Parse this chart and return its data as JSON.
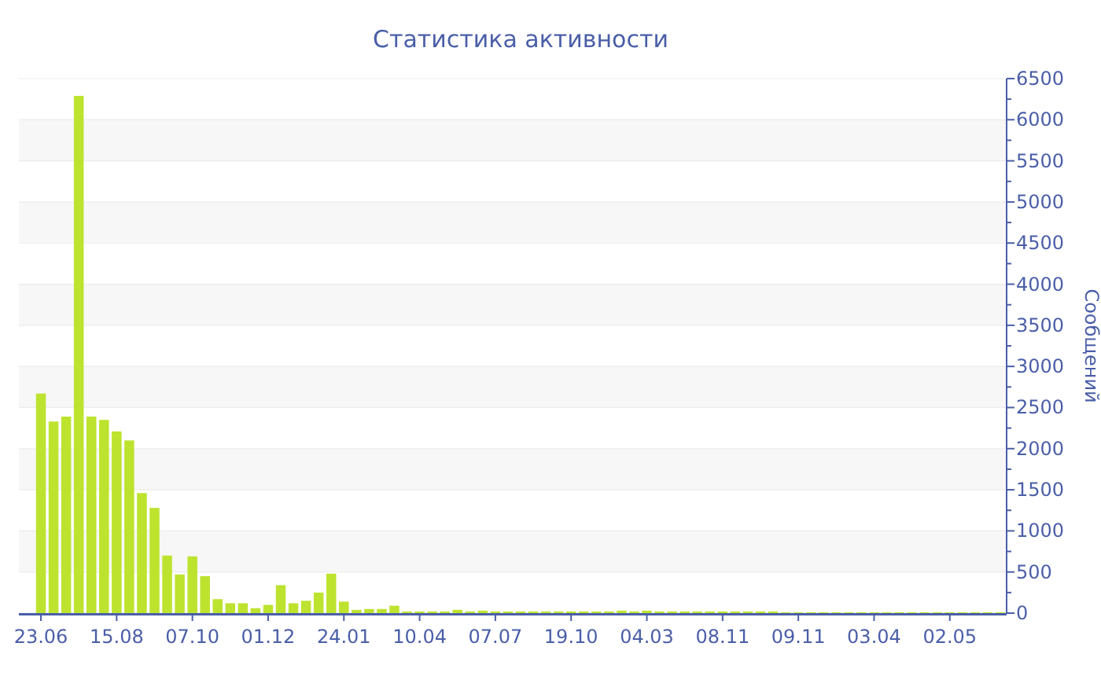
{
  "chart_data": {
    "type": "bar",
    "title": "Статистика активности",
    "ylabel": "Сообщений",
    "color": "#bde32f",
    "categories": [
      "23.06",
      null,
      null,
      null,
      null,
      null,
      "15.08",
      null,
      null,
      null,
      null,
      null,
      "07.10",
      null,
      null,
      null,
      null,
      null,
      "01.12",
      null,
      null,
      null,
      null,
      null,
      "24.01",
      null,
      null,
      null,
      null,
      null,
      "10.04",
      null,
      null,
      null,
      null,
      null,
      "07.07",
      null,
      null,
      null,
      null,
      null,
      "19.10",
      null,
      null,
      null,
      null,
      null,
      "04.03",
      null,
      null,
      null,
      null,
      null,
      "08.11",
      null,
      null,
      null,
      null,
      null,
      "09.11",
      null,
      null,
      null,
      null,
      null,
      "03.04",
      null,
      null,
      null,
      null,
      null,
      "02.05",
      null,
      null,
      null,
      null
    ],
    "values": [
      2670,
      2330,
      2390,
      6290,
      2390,
      2350,
      2210,
      2100,
      1460,
      1280,
      700,
      470,
      690,
      450,
      170,
      120,
      120,
      60,
      100,
      340,
      120,
      150,
      250,
      480,
      140,
      40,
      50,
      50,
      90,
      20,
      20,
      20,
      20,
      40,
      20,
      30,
      20,
      20,
      20,
      20,
      20,
      20,
      20,
      20,
      20,
      20,
      30,
      20,
      30,
      20,
      20,
      20,
      20,
      20,
      20,
      20,
      20,
      20,
      20,
      10,
      10,
      10,
      10,
      10,
      10,
      10,
      10,
      10,
      10,
      10,
      10,
      10,
      10,
      10,
      10,
      10,
      10
    ],
    "ylim": [
      0,
      6500
    ],
    "yticks": [
      0,
      {
        "value": 250,
        "label": null
      },
      500,
      {
        "value": 750,
        "label": null
      },
      1000,
      {
        "value": 1250,
        "label": null
      },
      1500,
      {
        "value": 1750,
        "label": null
      },
      2000,
      {
        "value": 2250,
        "label": null
      },
      2500,
      {
        "value": 2750,
        "label": null
      },
      3000,
      {
        "value": 3250,
        "label": null
      },
      3500,
      {
        "value": 3750,
        "label": null
      },
      4000,
      {
        "value": 4250,
        "label": null
      },
      4500,
      {
        "value": 4750,
        "label": null
      },
      5000,
      {
        "value": 5250,
        "label": null
      },
      5500,
      {
        "value": 5750,
        "label": null
      },
      6000,
      {
        "value": 6250,
        "label": null
      },
      6500
    ],
    "grid": "y"
  }
}
